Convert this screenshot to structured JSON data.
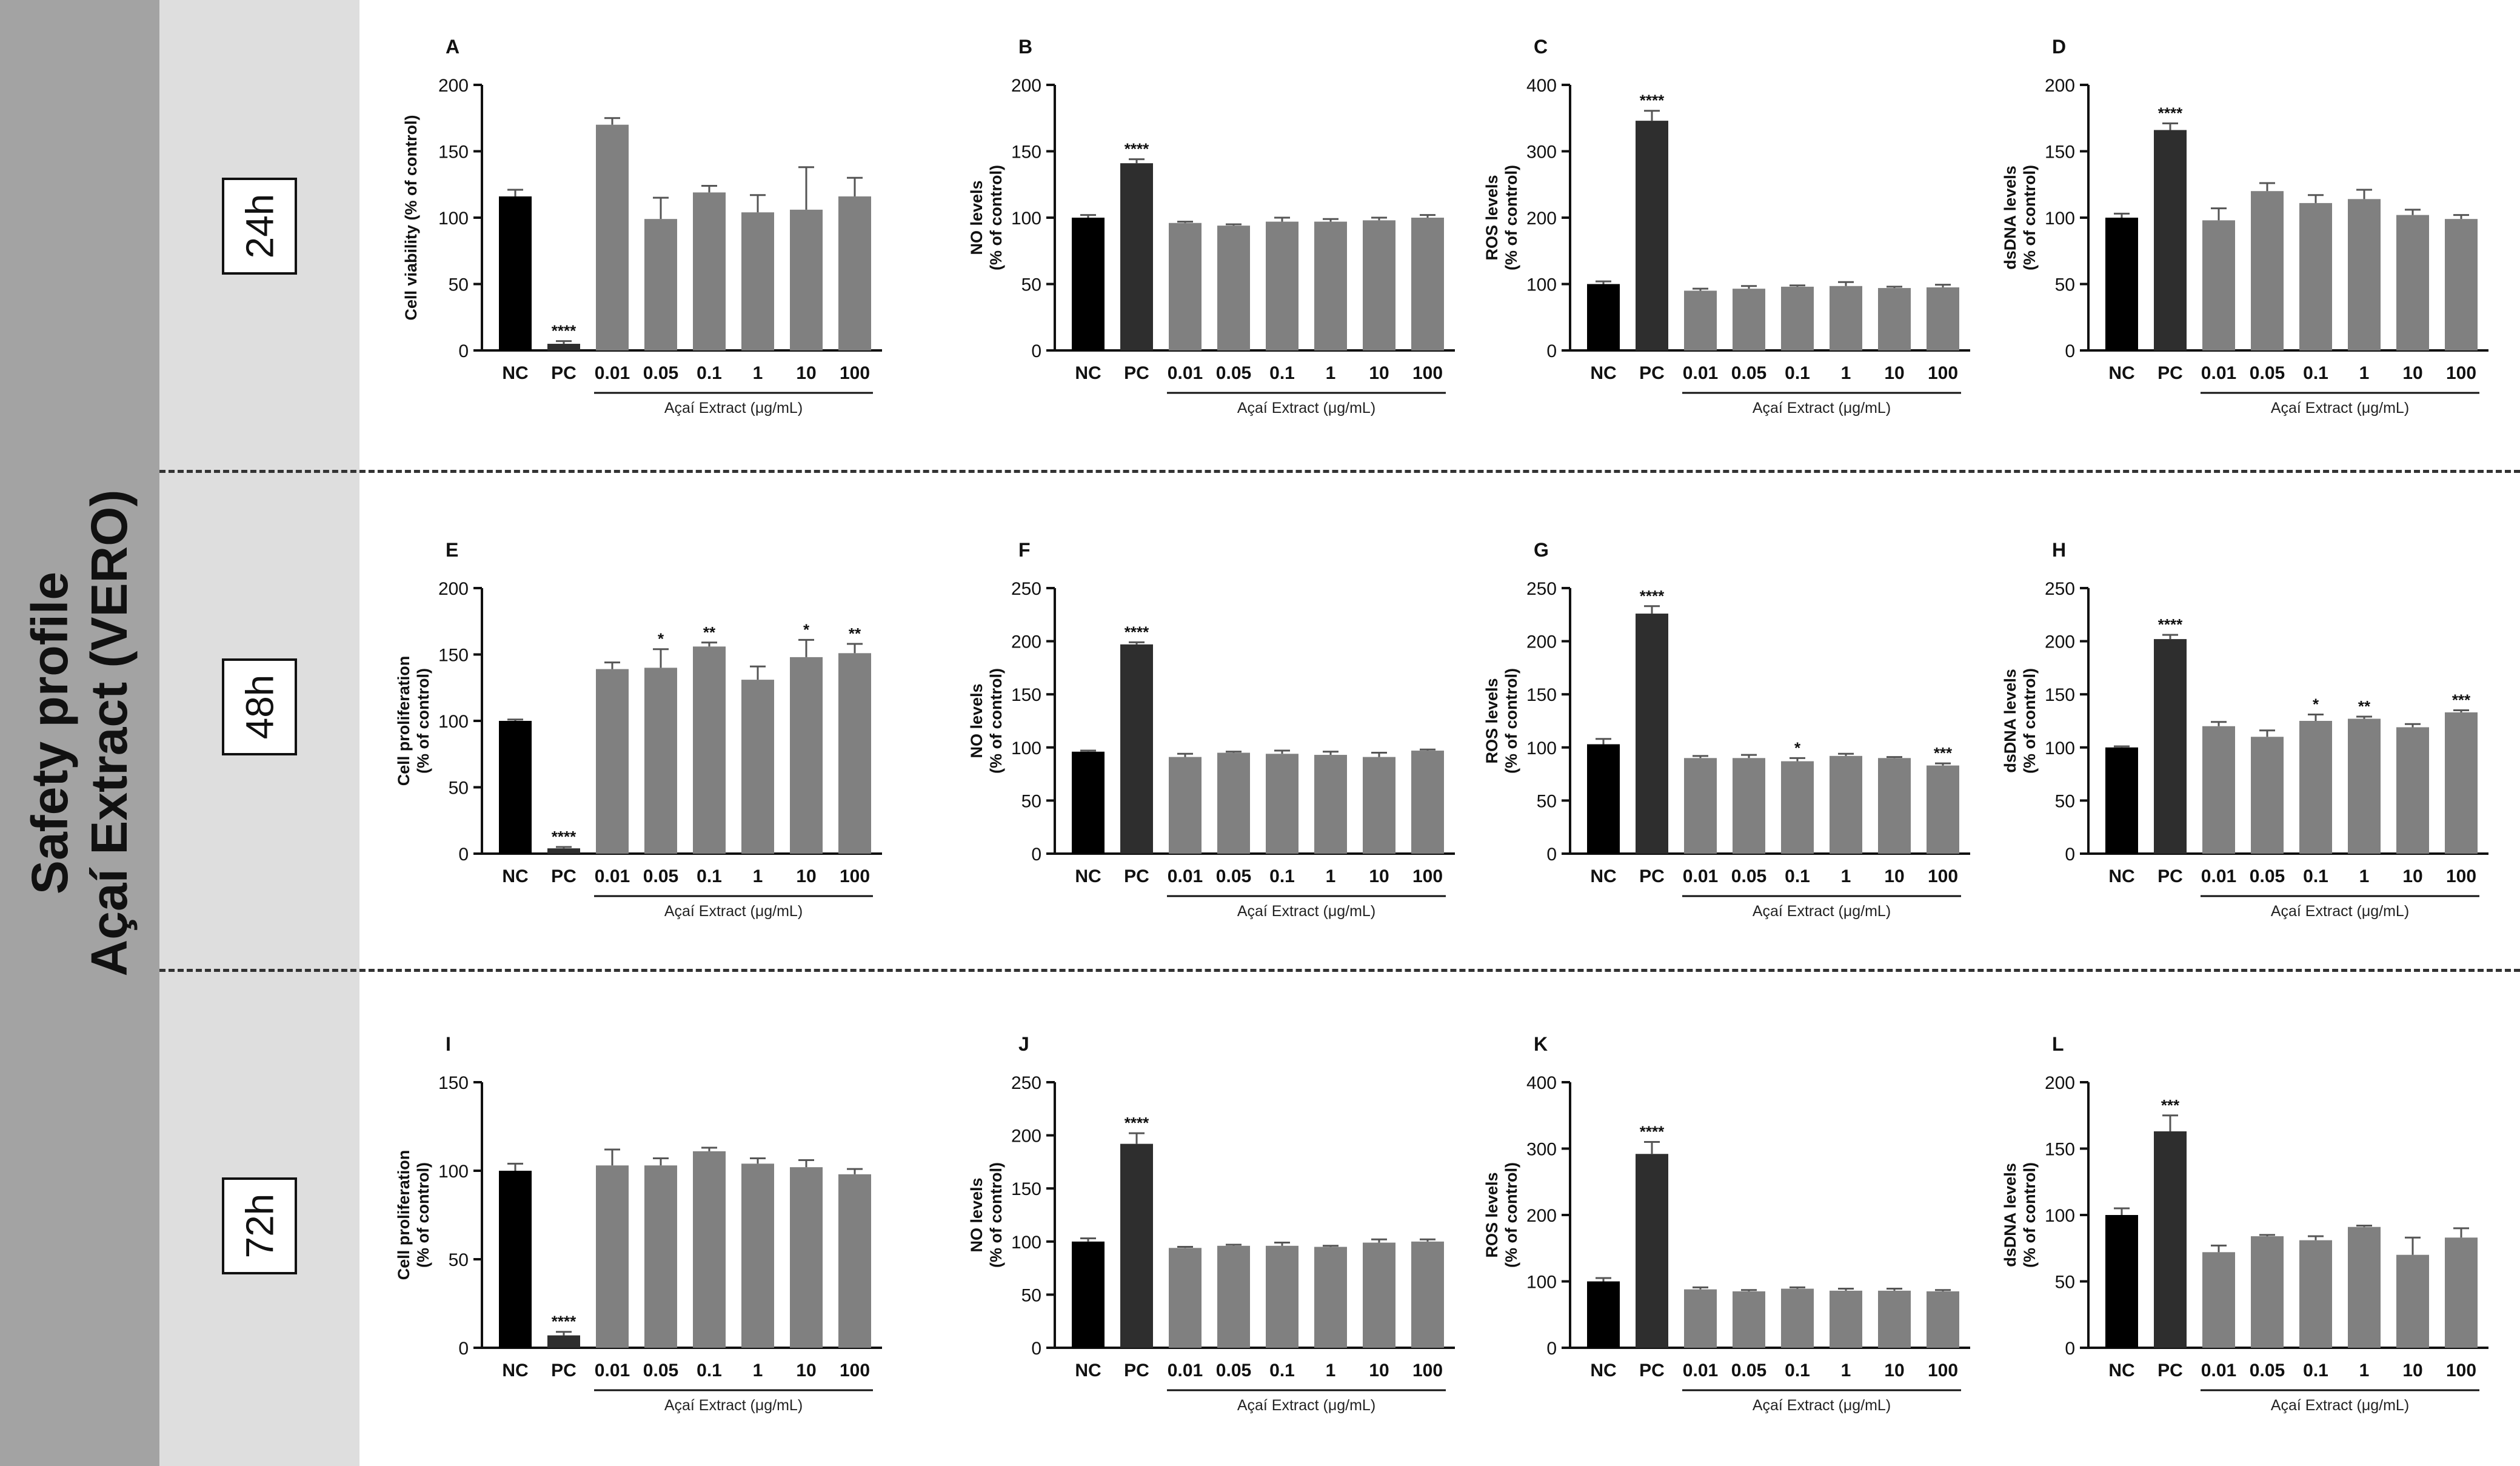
{
  "figure": {
    "title_line1": "Safety profile",
    "title_line2": "Açaí Extract (VERO)",
    "time_labels": [
      "24h",
      "48h",
      "72h"
    ],
    "colors": {
      "sidebar": "#a3a3a3",
      "timebar": "#dedede",
      "nc": "#000000",
      "pc": "#2e2e2e",
      "extract": "#808080",
      "divider": "#333333"
    }
  },
  "chart_data": [
    {
      "panel": "A",
      "type": "bar",
      "ylabel": "Cell viability (% of control)",
      "ylim": [
        0,
        200
      ],
      "yticks": [
        0,
        50,
        100,
        150,
        200
      ],
      "categories": [
        "NC",
        "PC",
        "0.01",
        "0.05",
        "0.1",
        "1",
        "10",
        "100"
      ],
      "values": [
        116,
        5,
        170,
        99,
        119,
        104,
        106,
        116
      ],
      "errors": [
        5,
        2,
        5,
        16,
        5,
        13,
        32,
        14
      ],
      "stars": [
        "",
        "****",
        "",
        "",
        "",
        "",
        "",
        ""
      ],
      "group_label": "Açaí Extract (μg/mL)"
    },
    {
      "panel": "B",
      "type": "bar",
      "ylabel": "NO levels\n(% of control)",
      "ylim": [
        0,
        200
      ],
      "yticks": [
        0,
        50,
        100,
        150,
        200
      ],
      "categories": [
        "NC",
        "PC",
        "0.01",
        "0.05",
        "0.1",
        "1",
        "10",
        "100"
      ],
      "values": [
        100,
        141,
        96,
        94,
        97,
        97,
        98,
        100
      ],
      "errors": [
        2,
        3,
        1,
        1,
        3,
        2,
        2,
        2
      ],
      "stars": [
        "",
        "****",
        "",
        "",
        "",
        "",
        "",
        ""
      ],
      "group_label": "Açaí Extract (μg/mL)"
    },
    {
      "panel": "C",
      "type": "bar",
      "ylabel": "ROS levels\n(% of control)",
      "ylim": [
        0,
        400
      ],
      "yticks": [
        0,
        100,
        200,
        300,
        400
      ],
      "categories": [
        "NC",
        "PC",
        "0.01",
        "0.05",
        "0.1",
        "1",
        "10",
        "100"
      ],
      "values": [
        100,
        346,
        90,
        93,
        96,
        97,
        94,
        95
      ],
      "errors": [
        4,
        15,
        3,
        4,
        2,
        6,
        2,
        4
      ],
      "stars": [
        "",
        "****",
        "",
        "",
        "",
        "",
        "",
        ""
      ],
      "group_label": "Açaí Extract (μg/mL)"
    },
    {
      "panel": "D",
      "type": "bar",
      "ylabel": "dsDNA levels\n(% of control)",
      "ylim": [
        0,
        200
      ],
      "yticks": [
        0,
        50,
        100,
        150,
        200
      ],
      "categories": [
        "NC",
        "PC",
        "0.01",
        "0.05",
        "0.1",
        "1",
        "10",
        "100"
      ],
      "values": [
        100,
        166,
        98,
        120,
        111,
        114,
        102,
        99
      ],
      "errors": [
        3,
        5,
        9,
        6,
        6,
        7,
        4,
        3
      ],
      "stars": [
        "",
        "****",
        "",
        "",
        "",
        "",
        "",
        ""
      ],
      "group_label": "Açaí Extract (μg/mL)"
    },
    {
      "panel": "E",
      "type": "bar",
      "ylabel": "Cell proliferation\n(% of control)",
      "ylim": [
        0,
        200
      ],
      "yticks": [
        0,
        50,
        100,
        150,
        200
      ],
      "categories": [
        "NC",
        "PC",
        "0.01",
        "0.05",
        "0.1",
        "1",
        "10",
        "100"
      ],
      "values": [
        100,
        4,
        139,
        140,
        156,
        131,
        148,
        151
      ],
      "errors": [
        1,
        1,
        5,
        14,
        3,
        10,
        13,
        7
      ],
      "stars": [
        "",
        "****",
        "",
        "*",
        "**",
        "",
        "*",
        "**"
      ],
      "group_label": "Açaí Extract (μg/mL)"
    },
    {
      "panel": "F",
      "type": "bar",
      "ylabel": "NO levels\n(% of control)",
      "ylim": [
        0,
        250
      ],
      "yticks": [
        0,
        50,
        100,
        150,
        200,
        250
      ],
      "categories": [
        "NC",
        "PC",
        "0.01",
        "0.05",
        "0.1",
        "1",
        "10",
        "100"
      ],
      "values": [
        96,
        197,
        91,
        95,
        94,
        93,
        91,
        97
      ],
      "errors": [
        1,
        2,
        3,
        1,
        3,
        3,
        4,
        1
      ],
      "stars": [
        "",
        "****",
        "",
        "",
        "",
        "",
        "",
        ""
      ],
      "group_label": "Açaí Extract (μg/mL)"
    },
    {
      "panel": "G",
      "type": "bar",
      "ylabel": "ROS levels\n(% of control)",
      "ylim": [
        0,
        250
      ],
      "yticks": [
        0,
        50,
        100,
        150,
        200,
        250
      ],
      "categories": [
        "NC",
        "PC",
        "0.01",
        "0.05",
        "0.1",
        "1",
        "10",
        "100"
      ],
      "values": [
        103,
        226,
        90,
        90,
        87,
        92,
        90,
        83
      ],
      "errors": [
        5,
        7,
        2,
        3,
        3,
        2,
        1,
        2
      ],
      "stars": [
        "",
        "****",
        "",
        "",
        "*",
        "",
        "",
        "***"
      ],
      "group_label": "Açaí Extract (μg/mL)"
    },
    {
      "panel": "H",
      "type": "bar",
      "ylabel": "dsDNA levels\n(% of control)",
      "ylim": [
        0,
        250
      ],
      "yticks": [
        0,
        50,
        100,
        150,
        200,
        250
      ],
      "categories": [
        "NC",
        "PC",
        "0.01",
        "0.05",
        "0.1",
        "1",
        "10",
        "100"
      ],
      "values": [
        100,
        202,
        120,
        110,
        125,
        127,
        119,
        133
      ],
      "errors": [
        1,
        4,
        4,
        6,
        6,
        2,
        3,
        2
      ],
      "stars": [
        "",
        "****",
        "",
        "",
        "*",
        "**",
        "",
        "***"
      ],
      "group_label": "Açaí Extract (μg/mL)"
    },
    {
      "panel": "I",
      "type": "bar",
      "ylabel": "Cell proliferation\n(% of control)",
      "ylim": [
        0,
        150
      ],
      "yticks": [
        0,
        50,
        100,
        150
      ],
      "categories": [
        "NC",
        "PC",
        "0.01",
        "0.05",
        "0.1",
        "1",
        "10",
        "100"
      ],
      "values": [
        100,
        7,
        103,
        103,
        111,
        104,
        102,
        98
      ],
      "errors": [
        4,
        2,
        9,
        4,
        2,
        3,
        4,
        3
      ],
      "stars": [
        "",
        "****",
        "",
        "",
        "",
        "",
        "",
        ""
      ],
      "group_label": "Açaí Extract (μg/mL)"
    },
    {
      "panel": "J",
      "type": "bar",
      "ylabel": "NO levels\n(% of control)",
      "ylim": [
        0,
        250
      ],
      "yticks": [
        0,
        50,
        100,
        150,
        200,
        250
      ],
      "categories": [
        "NC",
        "PC",
        "0.01",
        "0.05",
        "0.1",
        "1",
        "10",
        "100"
      ],
      "values": [
        100,
        192,
        94,
        96,
        96,
        95,
        99,
        100
      ],
      "errors": [
        3,
        10,
        1,
        1,
        3,
        1,
        3,
        2
      ],
      "stars": [
        "",
        "****",
        "",
        "",
        "",
        "",
        "",
        ""
      ],
      "group_label": "Açaí Extract (μg/mL)"
    },
    {
      "panel": "K",
      "type": "bar",
      "ylabel": "ROS levels\n(% of control)",
      "ylim": [
        0,
        400
      ],
      "yticks": [
        0,
        100,
        200,
        300,
        400
      ],
      "categories": [
        "NC",
        "PC",
        "0.01",
        "0.05",
        "0.1",
        "1",
        "10",
        "100"
      ],
      "values": [
        100,
        292,
        88,
        85,
        89,
        86,
        86,
        85
      ],
      "errors": [
        5,
        18,
        3,
        2,
        2,
        3,
        3,
        2
      ],
      "stars": [
        "",
        "****",
        "",
        "",
        "",
        "",
        "",
        ""
      ],
      "group_label": "Açaí Extract (μg/mL)"
    },
    {
      "panel": "L",
      "type": "bar",
      "ylabel": "dsDNA levels\n(% of control)",
      "ylim": [
        0,
        200
      ],
      "yticks": [
        0,
        50,
        100,
        150,
        200
      ],
      "categories": [
        "NC",
        "PC",
        "0.01",
        "0.05",
        "0.1",
        "1",
        "10",
        "100"
      ],
      "values": [
        100,
        163,
        72,
        84,
        81,
        91,
        70,
        83
      ],
      "errors": [
        5,
        12,
        5,
        1,
        3,
        1,
        13,
        7
      ],
      "stars": [
        "",
        "***",
        "",
        "",
        "",
        "",
        "",
        ""
      ],
      "group_label": "Açaí Extract (μg/mL)"
    }
  ]
}
